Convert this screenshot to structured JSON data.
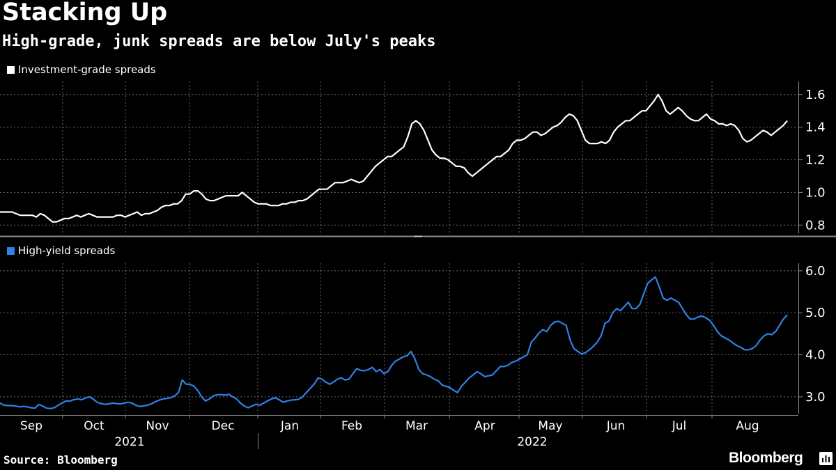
{
  "title": "Stacking Up",
  "subtitle": "High-grade, junk spreads are below July's peaks",
  "source": "Source: Bloomberg",
  "brand": "Bloomberg",
  "colors": {
    "background": "#000000",
    "ig_line": "#ffffff",
    "hy_line": "#2f82e6",
    "grid": "#6b6b6b"
  },
  "chart_data": [
    {
      "type": "line",
      "panel": "top",
      "legend": "Investment-grade spreads",
      "y_ticks": [
        "0.8",
        "1.0",
        "1.2",
        "1.4",
        "1.6"
      ],
      "ylim": [
        0.75,
        1.68
      ],
      "x_range": [
        0,
        260
      ],
      "values": [
        0.88,
        0.88,
        0.88,
        0.88,
        0.87,
        0.86,
        0.86,
        0.86,
        0.86,
        0.85,
        0.87,
        0.86,
        0.84,
        0.82,
        0.82,
        0.83,
        0.84,
        0.84,
        0.85,
        0.86,
        0.85,
        0.86,
        0.87,
        0.86,
        0.85,
        0.85,
        0.85,
        0.85,
        0.85,
        0.86,
        0.86,
        0.85,
        0.86,
        0.87,
        0.88,
        0.86,
        0.87,
        0.87,
        0.88,
        0.89,
        0.91,
        0.92,
        0.92,
        0.93,
        0.93,
        0.95,
        0.99,
        0.99,
        1.01,
        1.01,
        0.99,
        0.96,
        0.95,
        0.95,
        0.96,
        0.97,
        0.98,
        0.98,
        0.98,
        0.98,
        1.0,
        0.98,
        0.96,
        0.94,
        0.93,
        0.93,
        0.93,
        0.92,
        0.92,
        0.92,
        0.93,
        0.93,
        0.94,
        0.94,
        0.95,
        0.95,
        0.96,
        0.98,
        1.0,
        1.02,
        1.02,
        1.02,
        1.04,
        1.06,
        1.06,
        1.06,
        1.07,
        1.08,
        1.07,
        1.06,
        1.07,
        1.1,
        1.13,
        1.16,
        1.18,
        1.2,
        1.22,
        1.22,
        1.24,
        1.26,
        1.28,
        1.34,
        1.42,
        1.44,
        1.42,
        1.38,
        1.32,
        1.26,
        1.23,
        1.21,
        1.21,
        1.2,
        1.18,
        1.16,
        1.16,
        1.15,
        1.12,
        1.1,
        1.12,
        1.14,
        1.16,
        1.18,
        1.2,
        1.22,
        1.22,
        1.24,
        1.26,
        1.3,
        1.32,
        1.32,
        1.33,
        1.35,
        1.37,
        1.37,
        1.35,
        1.36,
        1.38,
        1.4,
        1.41,
        1.43,
        1.46,
        1.48,
        1.47,
        1.44,
        1.38,
        1.32,
        1.3,
        1.3,
        1.3,
        1.31,
        1.3,
        1.32,
        1.37,
        1.4,
        1.42,
        1.44,
        1.44,
        1.46,
        1.48,
        1.5,
        1.5,
        1.53,
        1.56,
        1.6,
        1.56,
        1.5,
        1.48,
        1.5,
        1.52,
        1.5,
        1.47,
        1.45,
        1.44,
        1.44,
        1.46,
        1.48,
        1.45,
        1.44,
        1.42,
        1.42,
        1.41,
        1.42,
        1.41,
        1.38,
        1.33,
        1.31,
        1.32,
        1.34,
        1.36,
        1.38,
        1.37,
        1.35,
        1.37,
        1.39,
        1.41,
        1.44
      ]
    },
    {
      "type": "line",
      "panel": "bottom",
      "legend": "High-yield spreads",
      "y_ticks": [
        "3.0",
        "4.0",
        "5.0",
        "6.0"
      ],
      "ylim": [
        2.6,
        6.18
      ],
      "x_range": [
        0,
        260
      ],
      "values": [
        2.85,
        2.8,
        2.79,
        2.79,
        2.78,
        2.76,
        2.77,
        2.76,
        2.74,
        2.73,
        2.82,
        2.78,
        2.73,
        2.72,
        2.74,
        2.8,
        2.85,
        2.9,
        2.9,
        2.93,
        2.95,
        2.93,
        2.97,
        3.0,
        2.95,
        2.87,
        2.84,
        2.82,
        2.83,
        2.85,
        2.84,
        2.83,
        2.85,
        2.87,
        2.85,
        2.8,
        2.77,
        2.78,
        2.8,
        2.83,
        2.88,
        2.92,
        2.95,
        2.96,
        2.98,
        3.02,
        3.1,
        3.4,
        3.3,
        3.3,
        3.25,
        3.15,
        3.0,
        2.9,
        2.95,
        3.02,
        3.05,
        3.05,
        3.04,
        3.06,
        3.0,
        2.95,
        2.85,
        2.78,
        2.74,
        2.78,
        2.82,
        2.8,
        2.85,
        2.9,
        2.95,
        2.98,
        2.93,
        2.87,
        2.9,
        2.92,
        2.93,
        2.94,
        3.0,
        3.1,
        3.2,
        3.3,
        3.45,
        3.42,
        3.35,
        3.3,
        3.35,
        3.42,
        3.45,
        3.4,
        3.42,
        3.55,
        3.67,
        3.63,
        3.62,
        3.65,
        3.7,
        3.6,
        3.65,
        3.55,
        3.6,
        3.75,
        3.85,
        3.9,
        3.95,
        3.98,
        4.08,
        3.9,
        3.65,
        3.55,
        3.52,
        3.48,
        3.42,
        3.38,
        3.28,
        3.25,
        3.22,
        3.15,
        3.1,
        3.25,
        3.35,
        3.45,
        3.52,
        3.6,
        3.55,
        3.48,
        3.5,
        3.52,
        3.62,
        3.72,
        3.72,
        3.75,
        3.82,
        3.85,
        3.9,
        3.95,
        4.0,
        4.3,
        4.4,
        4.52,
        4.6,
        4.55,
        4.7,
        4.78,
        4.8,
        4.75,
        4.7,
        4.35,
        4.15,
        4.08,
        4.02,
        4.05,
        4.12,
        4.2,
        4.3,
        4.45,
        4.75,
        4.8,
        5.0,
        5.1,
        5.05,
        5.15,
        5.25,
        5.1,
        5.1,
        5.2,
        5.45,
        5.7,
        5.78,
        5.85,
        5.62,
        5.35,
        5.3,
        5.35,
        5.3,
        5.25,
        5.1,
        4.95,
        4.85,
        4.85,
        4.9,
        4.92,
        4.88,
        4.82,
        4.7,
        4.55,
        4.45,
        4.4,
        4.35,
        4.28,
        4.22,
        4.18,
        4.12,
        4.12,
        4.15,
        4.22,
        4.35,
        4.45,
        4.5,
        4.48,
        4.55,
        4.7,
        4.85,
        4.95
      ]
    }
  ],
  "x_axis": {
    "months": [
      "Sep",
      "Oct",
      "Nov",
      "Dec",
      "Jan",
      "Feb",
      "Mar",
      "Apr",
      "May",
      "Jun",
      "Jul",
      "Aug"
    ],
    "years": [
      "2021",
      "2022"
    ]
  }
}
